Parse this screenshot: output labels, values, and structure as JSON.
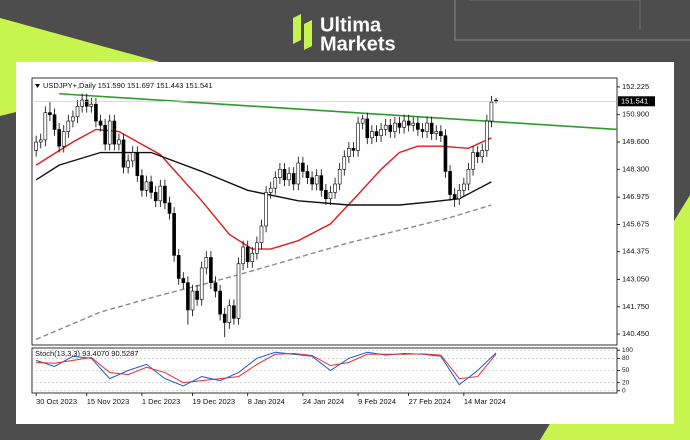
{
  "brand": {
    "line1": "Ultima",
    "line2": "Markets"
  },
  "chart_data": [
    {
      "type": "candlestick",
      "title": "USDJPY+,Daily 151.590 151.697 151.443 151.541",
      "up_color": "#ffffff",
      "down_color": "#000000",
      "outline_color": "#000000",
      "xlim": [
        -0.9,
        126.3
      ],
      "ylim": [
        139.93,
        152.65
      ],
      "yticks": [
        152.225,
        {
          "value": 150.9,
          "label": "150.900"
        },
        {
          "value": 149.6,
          "label": "149.600"
        },
        {
          "value": 148.3,
          "label": "148.300"
        },
        146.975,
        145.675,
        144.375,
        {
          "value": 143.05,
          "label": "143.050"
        },
        {
          "value": 141.75,
          "label": "141.750"
        },
        {
          "value": 140.45,
          "label": "140.450"
        }
      ],
      "xticks": [
        {
          "value": 0,
          "label": "30 Oct 2023"
        },
        {
          "value": 11,
          "label": "15 Nov 2023"
        },
        {
          "value": 23,
          "label": "1 Dec 2023"
        },
        {
          "value": 34,
          "label": "19 Dec 2023"
        },
        {
          "value": 46,
          "label": "8 Jan 2024"
        },
        {
          "value": 58,
          "label": "24 Jan 2024"
        },
        {
          "value": 70,
          "label": "9 Feb 2024"
        },
        {
          "value": 81,
          "label": "27 Feb 2024"
        },
        {
          "value": 93,
          "label": "14 Mar 2024"
        }
      ],
      "candles": [
        [
          149.2,
          149.9,
          148.9,
          149.6
        ],
        [
          149.6,
          150.0,
          149.3,
          149.7
        ],
        [
          149.7,
          151.3,
          149.4,
          151.0
        ],
        [
          151.0,
          151.5,
          150.6,
          150.9
        ],
        [
          150.9,
          151.2,
          149.9,
          150.2
        ],
        [
          150.2,
          150.5,
          149.1,
          149.4
        ],
        [
          149.4,
          150.4,
          149.1,
          150.1
        ],
        [
          150.1,
          150.9,
          149.8,
          150.6
        ],
        [
          150.6,
          151.1,
          150.3,
          150.8
        ],
        [
          150.8,
          151.6,
          150.5,
          151.3
        ],
        [
          151.3,
          151.9,
          151.0,
          151.6
        ],
        [
          151.6,
          151.9,
          151.0,
          151.3
        ],
        [
          151.3,
          151.7,
          151.0,
          151.4
        ],
        [
          151.4,
          151.7,
          150.3,
          150.6
        ],
        [
          150.6,
          150.9,
          150.1,
          150.4
        ],
        [
          150.4,
          150.7,
          149.2,
          149.5
        ],
        [
          149.5,
          150.9,
          149.2,
          150.6
        ],
        [
          150.6,
          150.9,
          149.2,
          149.5
        ],
        [
          149.5,
          150.0,
          149.2,
          149.7
        ],
        [
          149.7,
          150.0,
          148.1,
          148.4
        ],
        [
          148.4,
          149.0,
          148.1,
          148.7
        ],
        [
          148.7,
          149.4,
          148.4,
          149.1
        ],
        [
          149.1,
          149.4,
          147.7,
          148.0
        ],
        [
          148.0,
          148.3,
          147.0,
          147.3
        ],
        [
          147.3,
          148.0,
          147.0,
          147.7
        ],
        [
          147.7,
          148.0,
          146.9,
          147.2
        ],
        [
          147.2,
          147.5,
          146.5,
          146.8
        ],
        [
          146.8,
          147.8,
          146.5,
          147.5
        ],
        [
          147.5,
          147.8,
          146.4,
          146.7
        ],
        [
          146.7,
          147.0,
          145.9,
          146.2
        ],
        [
          146.2,
          146.5,
          143.9,
          144.2
        ],
        [
          144.2,
          144.5,
          142.8,
          143.1
        ],
        [
          143.1,
          143.4,
          142.6,
          142.9
        ],
        [
          142.9,
          143.2,
          140.9,
          141.6
        ],
        [
          141.6,
          142.8,
          141.3,
          142.5
        ],
        [
          142.5,
          142.8,
          141.8,
          142.1
        ],
        [
          142.1,
          143.9,
          141.8,
          143.6
        ],
        [
          143.6,
          144.4,
          143.3,
          144.1
        ],
        [
          144.1,
          144.4,
          142.6,
          142.9
        ],
        [
          142.9,
          143.2,
          142.2,
          142.5
        ],
        [
          142.5,
          142.8,
          141.1,
          141.4
        ],
        [
          141.4,
          141.7,
          140.3,
          141.0
        ],
        [
          141.0,
          142.1,
          140.7,
          141.8
        ],
        [
          141.8,
          142.1,
          140.9,
          141.2
        ],
        [
          141.2,
          144.1,
          140.9,
          143.8
        ],
        [
          143.8,
          144.9,
          143.5,
          144.6
        ],
        [
          144.6,
          144.9,
          143.6,
          143.9
        ],
        [
          143.9,
          144.6,
          143.6,
          144.3
        ],
        [
          144.3,
          145.1,
          144.0,
          144.8
        ],
        [
          144.8,
          145.9,
          144.5,
          145.6
        ],
        [
          145.6,
          147.5,
          145.3,
          147.2
        ],
        [
          147.2,
          147.7,
          146.9,
          147.4
        ],
        [
          147.4,
          148.2,
          147.1,
          147.9
        ],
        [
          147.9,
          148.6,
          147.6,
          148.3
        ],
        [
          148.3,
          148.6,
          147.5,
          147.8
        ],
        [
          147.8,
          148.4,
          147.5,
          148.1
        ],
        [
          148.1,
          148.4,
          147.3,
          147.6
        ],
        [
          147.6,
          148.9,
          147.3,
          148.6
        ],
        [
          148.6,
          148.9,
          147.9,
          148.2
        ],
        [
          148.2,
          148.5,
          147.6,
          147.9
        ],
        [
          147.9,
          148.2,
          147.3,
          147.6
        ],
        [
          147.6,
          148.3,
          147.3,
          148.0
        ],
        [
          148.0,
          148.3,
          147.0,
          147.3
        ],
        [
          147.3,
          147.6,
          146.6,
          146.9
        ],
        [
          146.9,
          147.5,
          146.6,
          147.2
        ],
        [
          147.2,
          147.9,
          146.9,
          147.6
        ],
        [
          147.6,
          148.6,
          147.3,
          148.3
        ],
        [
          148.3,
          149.2,
          148.0,
          148.9
        ],
        [
          148.9,
          149.6,
          148.6,
          149.3
        ],
        [
          149.3,
          149.6,
          148.9,
          149.2
        ],
        [
          149.2,
          150.8,
          148.9,
          150.5
        ],
        [
          150.5,
          150.9,
          150.2,
          150.7
        ],
        [
          150.7,
          151.0,
          149.5,
          149.8
        ],
        [
          149.8,
          150.4,
          149.5,
          150.1
        ],
        [
          150.1,
          150.4,
          149.6,
          149.9
        ],
        [
          149.9,
          150.5,
          149.6,
          150.2
        ],
        [
          150.2,
          150.7,
          149.9,
          150.4
        ],
        [
          150.4,
          150.7,
          149.8,
          150.1
        ],
        [
          150.1,
          150.8,
          149.8,
          150.5
        ],
        [
          150.5,
          150.8,
          150.0,
          150.3
        ],
        [
          150.3,
          150.9,
          150.0,
          150.6
        ],
        [
          150.6,
          150.9,
          150.1,
          150.4
        ],
        [
          150.4,
          150.8,
          150.1,
          150.5
        ],
        [
          150.5,
          150.8,
          149.9,
          150.2
        ],
        [
          150.2,
          150.5,
          149.8,
          150.1
        ],
        [
          150.1,
          150.8,
          149.8,
          150.5
        ],
        [
          150.5,
          150.8,
          149.7,
          150.0
        ],
        [
          150.0,
          150.4,
          149.7,
          150.1
        ],
        [
          150.1,
          150.4,
          149.6,
          149.9
        ],
        [
          149.9,
          150.2,
          147.9,
          148.2
        ],
        [
          148.2,
          148.5,
          146.8,
          147.1
        ],
        [
          147.1,
          147.4,
          146.5,
          146.9
        ],
        [
          146.9,
          147.6,
          146.6,
          147.3
        ],
        [
          147.3,
          147.9,
          147.0,
          147.6
        ],
        [
          147.6,
          148.6,
          147.3,
          148.3
        ],
        [
          148.3,
          149.4,
          148.0,
          149.1
        ],
        [
          149.1,
          149.4,
          148.6,
          148.9
        ],
        [
          148.9,
          149.5,
          148.6,
          149.2
        ],
        [
          149.2,
          150.9,
          148.9,
          150.6
        ],
        [
          150.6,
          151.8,
          150.3,
          151.5
        ],
        [
          151.59,
          151.697,
          151.443,
          151.541
        ]
      ],
      "overlays": [
        {
          "color": "#e31b1b",
          "dash": false,
          "x": [
            0,
            8,
            13,
            18,
            27,
            36,
            42,
            47,
            51,
            57,
            64,
            70,
            75,
            79,
            83,
            88,
            94,
            99
          ],
          "values": [
            148.5,
            149.6,
            150.2,
            150.1,
            149.0,
            146.8,
            145.2,
            144.5,
            144.5,
            144.9,
            145.7,
            147.1,
            148.3,
            149.1,
            149.4,
            149.4,
            149.3,
            149.8
          ]
        },
        {
          "color": "#111111",
          "dash": false,
          "x": [
            0,
            5,
            14,
            25,
            36,
            46,
            57,
            68,
            79,
            86,
            92,
            99
          ],
          "values": [
            147.8,
            148.5,
            149.1,
            149.1,
            148.2,
            147.3,
            146.8,
            146.6,
            146.6,
            146.75,
            146.9,
            147.7
          ]
        },
        {
          "color": "#8a8a8a",
          "dash": true,
          "x": [
            0,
            14,
            27,
            36,
            46,
            57,
            68,
            79,
            90,
            99
          ],
          "values": [
            140.2,
            141.5,
            142.3,
            142.8,
            143.4,
            144.1,
            144.8,
            145.4,
            146.0,
            146.6
          ]
        }
      ],
      "trendline": {
        "color": "#2e9b2e",
        "x": [
          5,
          126.3
        ],
        "values": [
          151.9,
          150.2
        ]
      }
    },
    {
      "type": "line",
      "title": "Stoch(13,3,3) 93.4070 90.5287",
      "xlim": [
        -0.9,
        126.3
      ],
      "ylim": [
        -3,
        103
      ],
      "yticks": [
        100,
        80,
        50,
        20,
        0
      ],
      "grid": true,
      "x": [
        0,
        4,
        8,
        12,
        16,
        20,
        24,
        28,
        32,
        36,
        40,
        44,
        48,
        52,
        56,
        60,
        64,
        68,
        72,
        76,
        80,
        84,
        88,
        92,
        96,
        100
      ],
      "series": [
        {
          "color": "#2456d6",
          "values": [
            75,
            60,
            85,
            80,
            30,
            50,
            65,
            30,
            12,
            35,
            25,
            45,
            80,
            95,
            90,
            85,
            50,
            80,
            95,
            88,
            92,
            90,
            85,
            15,
            50,
            93.407
          ]
        },
        {
          "color": "#e53030",
          "values": [
            70,
            68,
            75,
            82,
            45,
            40,
            58,
            45,
            20,
            25,
            30,
            35,
            65,
            90,
            92,
            87,
            62,
            70,
            90,
            90,
            90,
            91,
            88,
            30,
            35,
            90.5287
          ]
        }
      ]
    }
  ]
}
